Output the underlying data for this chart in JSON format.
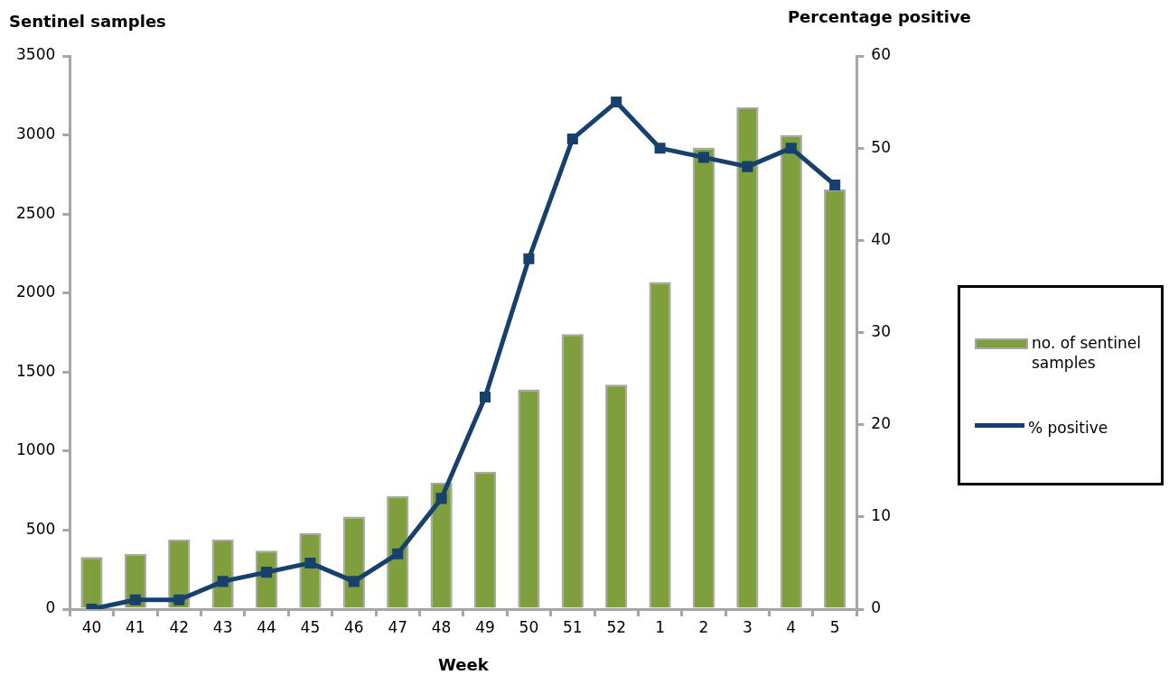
{
  "chart_data": {
    "type": "bar",
    "xlabel": "Week",
    "ylabel": "Sentinel samples",
    "y2label": "Percentage positive",
    "categories": [
      "40",
      "41",
      "42",
      "43",
      "44",
      "45",
      "46",
      "47",
      "48",
      "49",
      "50",
      "51",
      "52",
      "1",
      "2",
      "3",
      "4",
      "5"
    ],
    "series": [
      {
        "name": "no. of sentinel samples",
        "color": "#7f9f3f",
        "values": [
          330,
          350,
          440,
          440,
          370,
          480,
          585,
          715,
          800,
          870,
          1390,
          1740,
          1420,
          2070,
          2920,
          3175,
          3000,
          2655
        ]
      },
      {
        "name": "% positive",
        "type": "line",
        "axis": "y2",
        "color": "#17406d",
        "values": [
          0,
          1,
          1,
          3,
          4,
          5,
          3,
          6,
          12,
          23,
          38,
          51,
          55,
          50,
          49,
          48,
          50,
          46
        ]
      }
    ],
    "ylim": [
      0,
      3500
    ],
    "yticks": [
      0,
      500,
      1000,
      1500,
      2000,
      2500,
      3000,
      3500
    ],
    "y2lim": [
      0,
      60
    ],
    "y2ticks": [
      0,
      10,
      20,
      30,
      40,
      50,
      60
    ],
    "grid": false,
    "legend": "right",
    "marker": "square",
    "line_style": "solid"
  }
}
